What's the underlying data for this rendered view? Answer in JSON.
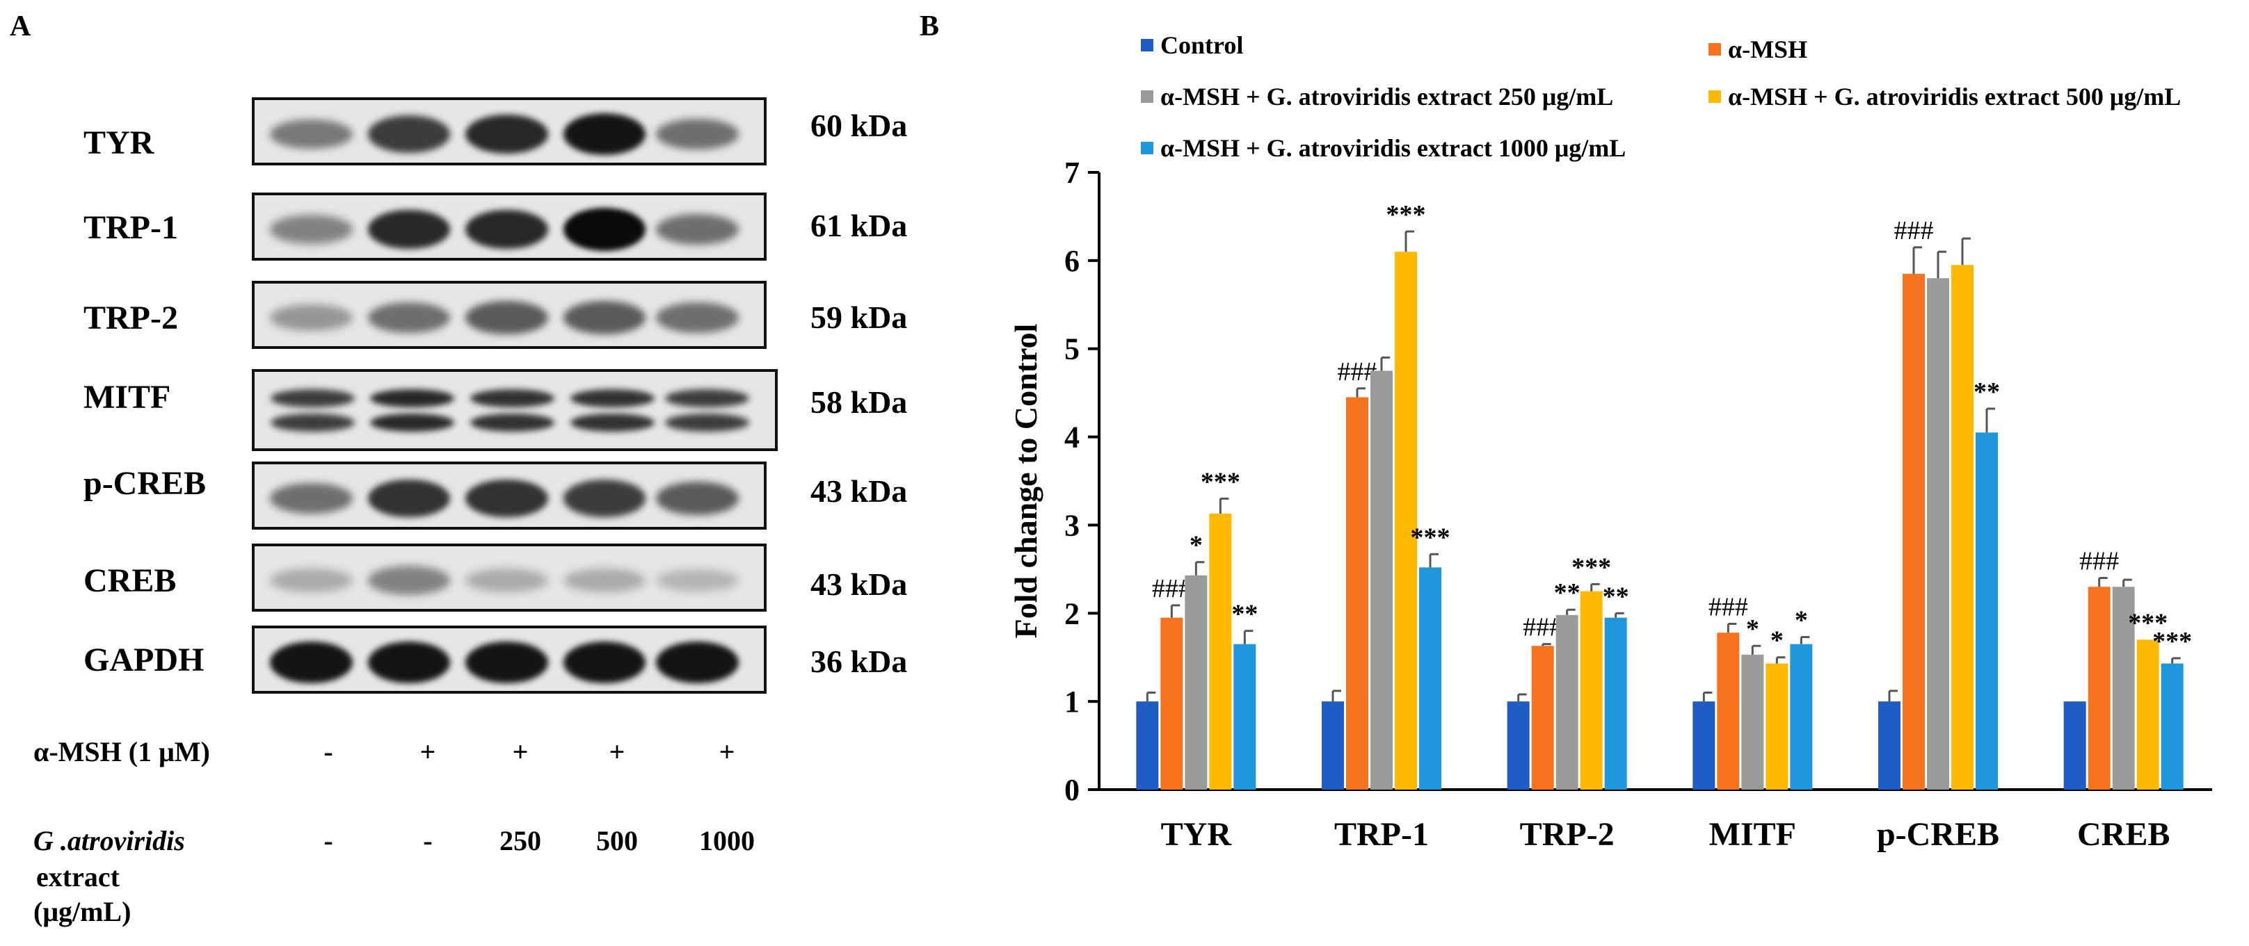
{
  "panel_a": {
    "label": "A",
    "blots": [
      {
        "name": "TYR",
        "kda": "60 kDa",
        "bands": [
          0.45,
          0.75,
          0.85,
          0.95,
          0.5
        ]
      },
      {
        "name": "TRP-1",
        "kda": "61 kDa",
        "bands": [
          0.4,
          0.85,
          0.85,
          1.0,
          0.5
        ]
      },
      {
        "name": "TRP-2",
        "kda": "59 kDa",
        "bands": [
          0.3,
          0.5,
          0.6,
          0.6,
          0.5
        ]
      },
      {
        "name": "MITF",
        "kda": "58 kDa",
        "bands": [
          0.75,
          0.85,
          0.8,
          0.8,
          0.75
        ]
      },
      {
        "name": "p-CREB",
        "kda": "43 kDa",
        "bands": [
          0.5,
          0.8,
          0.8,
          0.75,
          0.6
        ]
      },
      {
        "name": "CREB",
        "kda": "43 kDa",
        "bands": [
          0.2,
          0.4,
          0.2,
          0.2,
          0.15
        ]
      },
      {
        "name": "GAPDH",
        "kda": "36 kDa",
        "bands": [
          0.95,
          0.95,
          0.95,
          0.95,
          0.95
        ]
      }
    ],
    "treatment": {
      "msh_label": "α-MSH (1 μM)",
      "msh_values": [
        "-",
        "+",
        "+",
        "+",
        "+"
      ],
      "extract_label_1": "G .atroviridis",
      "extract_label_2": "extract",
      "extract_label_3": "(μg/mL)",
      "extract_values": [
        "-",
        "-",
        "250",
        "500",
        "1000"
      ]
    }
  },
  "panel_b": {
    "label": "B",
    "colors": {
      "control": "#1f5cc4",
      "msh": "#f7731f",
      "e250": "#9a9a9a",
      "e500": "#ffba00",
      "e1000": "#1f97db"
    }
  },
  "chart_data": {
    "type": "bar",
    "ylabel": "Fold change to Control",
    "xlabel": "",
    "ylim": [
      0,
      7
    ],
    "yticks": [
      0,
      1,
      2,
      3,
      4,
      5,
      6,
      7
    ],
    "categories": [
      "TYR",
      "TRP-1",
      "TRP-2",
      "MITF",
      "p-CREB",
      "CREB"
    ],
    "series": [
      {
        "name": "Control",
        "values": [
          1.0,
          1.0,
          1.0,
          1.0,
          1.0,
          1.0
        ],
        "errors": [
          0.1,
          0.12,
          0.08,
          0.1,
          0.12,
          0.0
        ],
        "sig": [
          "",
          "",
          "",
          "",
          "",
          ""
        ]
      },
      {
        "name": "α-MSH",
        "values": [
          1.95,
          4.45,
          1.63,
          1.78,
          5.85,
          2.3
        ],
        "errors": [
          0.14,
          0.1,
          0.02,
          0.1,
          0.3,
          0.1
        ],
        "sig": [
          "###",
          "###",
          "###",
          "###",
          "###",
          "###"
        ]
      },
      {
        "name": "α-MSH + G. atroviridis extract 250 μg/mL",
        "values": [
          2.43,
          4.75,
          1.98,
          1.53,
          5.8,
          2.3
        ],
        "errors": [
          0.15,
          0.15,
          0.06,
          0.1,
          0.3,
          0.08
        ],
        "sig": [
          "*",
          "",
          "**",
          "*",
          "",
          ""
        ]
      },
      {
        "name": "α-MSH + G. atroviridis extract 500 μg/mL",
        "values": [
          3.13,
          6.1,
          2.25,
          1.43,
          5.95,
          1.7
        ],
        "errors": [
          0.17,
          0.23,
          0.08,
          0.07,
          0.3,
          0.0
        ],
        "sig": [
          "***",
          "***",
          "***",
          "*",
          "",
          "***"
        ]
      },
      {
        "name": "α-MSH + G. atroviridis extract 1000 μg/mL",
        "values": [
          1.65,
          2.52,
          1.95,
          1.65,
          4.05,
          1.43
        ],
        "errors": [
          0.15,
          0.15,
          0.05,
          0.08,
          0.27,
          0.06
        ],
        "sig": [
          "**",
          "***",
          "**",
          "*",
          "**",
          "***"
        ]
      }
    ],
    "legend": [
      {
        "text": "Control",
        "color": "#1f5cc4"
      },
      {
        "text": "α-MSH",
        "color": "#f7731f"
      },
      {
        "text": "α-MSH + G. atroviridis extract 250 μg/mL",
        "color": "#9a9a9a"
      },
      {
        "text": "α-MSH +  G. atroviridis extract 500 μg/mL",
        "color": "#ffba00"
      },
      {
        "text": "α-MSH + G. atroviridis extract  1000 μg/mL",
        "color": "#1f97db"
      }
    ]
  }
}
